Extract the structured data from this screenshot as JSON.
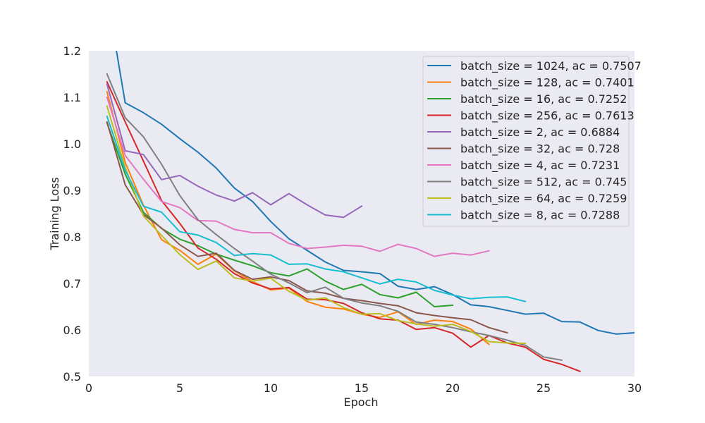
{
  "chart_data": {
    "type": "line",
    "title": "",
    "xlabel": "Epoch",
    "ylabel": "Training Loss",
    "xlim": [
      0,
      30
    ],
    "ylim": [
      0.5,
      1.2
    ],
    "xticks": [
      "0",
      "5",
      "10",
      "15",
      "20",
      "25",
      "30"
    ],
    "yticks": [
      "0.5",
      "0.6",
      "0.7",
      "0.8",
      "0.9",
      "1.0",
      "1.1",
      "1.2"
    ],
    "grid": false,
    "legend_position": "top-right",
    "series": [
      {
        "name": "batch_size = 1024, ac = 0.7507",
        "color": "#1f77b4",
        "x": [
          1,
          2,
          3,
          4,
          5,
          6,
          7,
          8,
          9,
          10,
          11,
          12,
          13,
          14,
          15,
          16,
          17,
          18,
          19,
          20,
          21,
          22,
          23,
          24,
          25,
          26,
          27,
          28,
          29,
          30
        ],
        "y": [
          1.32,
          1.088,
          1.067,
          1.042,
          1.011,
          0.982,
          0.948,
          0.905,
          0.876,
          0.833,
          0.796,
          0.771,
          0.746,
          0.728,
          0.725,
          0.721,
          0.694,
          0.687,
          0.693,
          0.676,
          0.654,
          0.65,
          0.642,
          0.634,
          0.636,
          0.618,
          0.617,
          0.599,
          0.591,
          0.594
        ]
      },
      {
        "name": "batch_size = 128, ac = 0.7401",
        "color": "#ff7f0e",
        "x": [
          1,
          2,
          3,
          4,
          5,
          6,
          7,
          8,
          9,
          10,
          11,
          12,
          13,
          14,
          15,
          16,
          17,
          18,
          19,
          20,
          21,
          22
        ],
        "y": [
          1.112,
          0.96,
          0.868,
          0.794,
          0.771,
          0.741,
          0.763,
          0.727,
          0.704,
          0.686,
          0.69,
          0.661,
          0.649,
          0.645,
          0.634,
          0.627,
          0.639,
          0.612,
          0.621,
          0.618,
          0.602,
          0.569
        ]
      },
      {
        "name": "batch_size = 16, ac = 0.7252",
        "color": "#2ca02c",
        "x": [
          1,
          2,
          3,
          4,
          5,
          6,
          7,
          8,
          9,
          10,
          11,
          12,
          13,
          14,
          15,
          16,
          17,
          18,
          19,
          20
        ],
        "y": [
          1.045,
          0.935,
          0.853,
          0.818,
          0.795,
          0.781,
          0.763,
          0.75,
          0.738,
          0.723,
          0.716,
          0.731,
          0.705,
          0.687,
          0.698,
          0.676,
          0.669,
          0.681,
          0.65,
          0.653
        ]
      },
      {
        "name": "batch_size = 256, ac = 0.7613",
        "color": "#d62728",
        "x": [
          1,
          2,
          3,
          4,
          5,
          6,
          7,
          8,
          9,
          10,
          11,
          12,
          13,
          14,
          15,
          16,
          17,
          18,
          19,
          20,
          21,
          22,
          23,
          24,
          25,
          26,
          27
        ],
        "y": [
          1.133,
          1.047,
          0.963,
          0.878,
          0.829,
          0.776,
          0.752,
          0.721,
          0.701,
          0.688,
          0.691,
          0.666,
          0.665,
          0.657,
          0.637,
          0.624,
          0.621,
          0.601,
          0.605,
          0.593,
          0.563,
          0.588,
          0.572,
          0.563,
          0.537,
          0.526,
          0.511
        ]
      },
      {
        "name": "batch_size = 2, ac = 0.6884",
        "color": "#9467bd",
        "x": [
          1,
          2,
          3,
          4,
          5,
          6,
          7,
          8,
          9,
          10,
          11,
          12,
          13,
          14,
          15
        ],
        "y": [
          1.128,
          0.985,
          0.977,
          0.923,
          0.932,
          0.909,
          0.89,
          0.877,
          0.895,
          0.869,
          0.893,
          0.869,
          0.847,
          0.842,
          0.866
        ]
      },
      {
        "name": "batch_size = 32, ac = 0.728",
        "color": "#8c564b",
        "x": [
          1,
          2,
          3,
          4,
          5,
          6,
          7,
          8,
          9,
          10,
          11,
          12,
          13,
          14,
          15,
          16,
          17,
          18,
          19,
          20,
          21,
          22,
          23
        ],
        "y": [
          1.047,
          0.912,
          0.848,
          0.819,
          0.783,
          0.758,
          0.765,
          0.728,
          0.709,
          0.714,
          0.706,
          0.684,
          0.679,
          0.668,
          0.663,
          0.657,
          0.652,
          0.637,
          0.631,
          0.626,
          0.622,
          0.605,
          0.594
        ]
      },
      {
        "name": "batch_size = 4, ac = 0.7231",
        "color": "#e377c2",
        "x": [
          1,
          2,
          3,
          4,
          5,
          6,
          7,
          8,
          9,
          10,
          11,
          12,
          13,
          14,
          15,
          16,
          17,
          18,
          19,
          20,
          21,
          22
        ],
        "y": [
          1.1,
          0.975,
          0.924,
          0.876,
          0.863,
          0.835,
          0.834,
          0.816,
          0.809,
          0.809,
          0.786,
          0.775,
          0.778,
          0.782,
          0.78,
          0.769,
          0.784,
          0.775,
          0.758,
          0.765,
          0.761,
          0.77
        ]
      },
      {
        "name": "batch_size = 512, ac = 0.745",
        "color": "#7f7f7f",
        "x": [
          1,
          2,
          3,
          4,
          5,
          6,
          7,
          8,
          9,
          10,
          11,
          12,
          13,
          14,
          15,
          16,
          17,
          18,
          19,
          20,
          21,
          22,
          23,
          24,
          25,
          26
        ],
        "y": [
          1.15,
          1.056,
          1.015,
          0.956,
          0.889,
          0.837,
          0.805,
          0.775,
          0.748,
          0.72,
          0.701,
          0.68,
          0.692,
          0.668,
          0.658,
          0.652,
          0.64,
          0.617,
          0.612,
          0.605,
          0.596,
          0.588,
          0.578,
          0.567,
          0.542,
          0.535
        ]
      },
      {
        "name": "batch_size = 64, ac = 0.7259",
        "color": "#bcbd22",
        "x": [
          1,
          2,
          3,
          4,
          5,
          6,
          7,
          8,
          9,
          10,
          11,
          12,
          13,
          14,
          15,
          16,
          17,
          18,
          19,
          20,
          21,
          22,
          23,
          24
        ],
        "y": [
          1.081,
          0.949,
          0.845,
          0.803,
          0.762,
          0.73,
          0.748,
          0.712,
          0.705,
          0.711,
          0.683,
          0.664,
          0.669,
          0.648,
          0.634,
          0.635,
          0.62,
          0.613,
          0.608,
          0.612,
          0.597,
          0.575,
          0.572,
          0.571
        ]
      },
      {
        "name": "batch_size = 8, ac = 0.7288",
        "color": "#17becf",
        "x": [
          1,
          2,
          3,
          4,
          5,
          6,
          7,
          8,
          9,
          10,
          11,
          12,
          13,
          14,
          15,
          16,
          17,
          18,
          19,
          20,
          21,
          22,
          23,
          24
        ],
        "y": [
          1.059,
          0.943,
          0.866,
          0.853,
          0.811,
          0.804,
          0.788,
          0.76,
          0.764,
          0.761,
          0.741,
          0.742,
          0.731,
          0.725,
          0.712,
          0.699,
          0.709,
          0.703,
          0.685,
          0.675,
          0.667,
          0.67,
          0.671,
          0.661
        ]
      }
    ]
  }
}
